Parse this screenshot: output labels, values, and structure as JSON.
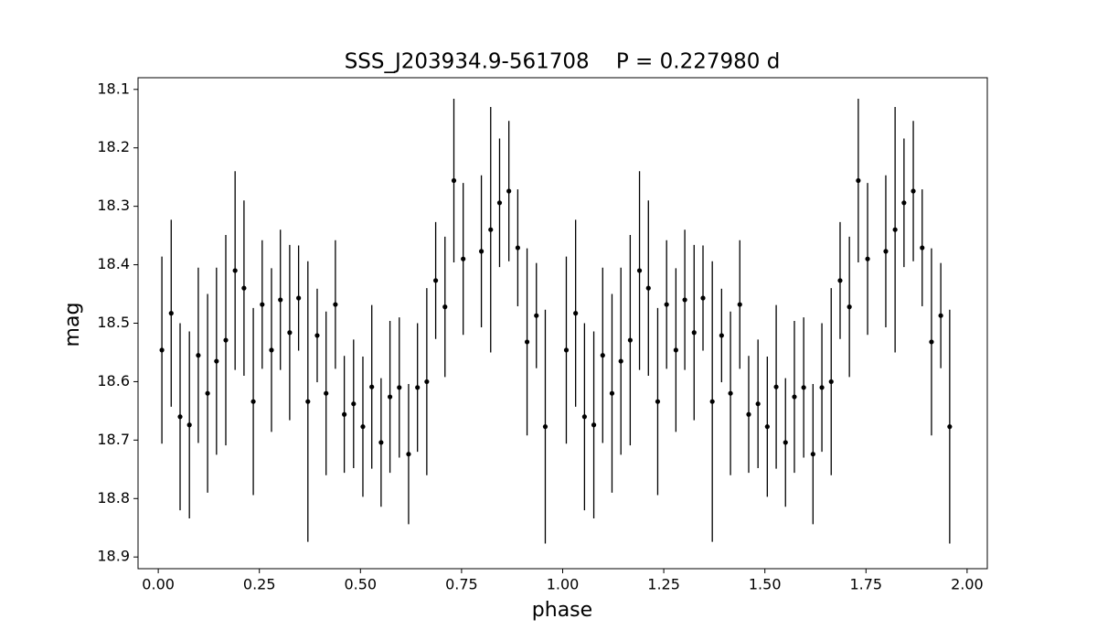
{
  "chart_data": {
    "type": "errorbar_scatter",
    "title": "SSS_J203934.9-561708    P = 0.227980 d",
    "x_label": "phase",
    "y_label": "mag",
    "xlim": [
      -0.05,
      2.05
    ],
    "ylim": [
      18.92,
      18.08
    ],
    "y_inverted": true,
    "xticks": [
      {
        "value": 0,
        "label": "0.00"
      },
      {
        "value": 0.25,
        "label": "0.25"
      },
      {
        "value": 0.5,
        "label": "0.50"
      },
      {
        "value": 0.75,
        "label": "0.75"
      },
      {
        "value": 1,
        "label": "1.00"
      },
      {
        "value": 1.25,
        "label": "1.25"
      },
      {
        "value": 1.5,
        "label": "1.50"
      },
      {
        "value": 1.75,
        "label": "1.75"
      },
      {
        "value": 2,
        "label": "2.00"
      }
    ],
    "yticks": [
      18.1,
      18.2,
      18.3,
      18.4,
      18.5,
      18.6,
      18.7,
      18.8,
      18.9
    ],
    "grid": false,
    "series": [
      {
        "color": "#000000",
        "x": [
          0.009,
          0.032,
          0.054,
          0.077,
          0.099,
          0.122,
          0.144,
          0.167,
          0.19,
          0.212,
          0.235,
          0.257,
          0.28,
          0.302,
          0.325,
          0.347,
          0.37,
          0.393,
          0.415,
          0.438,
          0.46,
          0.483,
          0.506,
          0.528,
          0.551,
          0.573,
          0.596,
          0.619,
          0.641,
          0.664,
          0.686,
          0.709,
          0.731,
          0.754,
          0.799,
          0.822,
          0.844,
          0.867,
          0.889,
          0.912,
          0.935,
          0.957,
          1.009,
          1.032,
          1.054,
          1.077,
          1.099,
          1.122,
          1.144,
          1.167,
          1.19,
          1.212,
          1.235,
          1.257,
          1.28,
          1.302,
          1.325,
          1.347,
          1.37,
          1.393,
          1.415,
          1.438,
          1.46,
          1.483,
          1.506,
          1.528,
          1.551,
          1.573,
          1.596,
          1.619,
          1.641,
          1.664,
          1.686,
          1.709,
          1.731,
          1.754,
          1.799,
          1.822,
          1.844,
          1.867,
          1.889,
          1.912,
          1.935,
          1.957
        ],
        "values": [
          18.546,
          18.483,
          18.66,
          18.674,
          18.555,
          18.62,
          18.565,
          18.529,
          18.41,
          18.44,
          18.634,
          18.468,
          18.546,
          18.46,
          18.516,
          18.457,
          18.634,
          18.521,
          18.62,
          18.468,
          18.656,
          18.638,
          18.677,
          18.609,
          18.704,
          18.626,
          18.61,
          18.724,
          18.61,
          18.6,
          18.427,
          18.472,
          18.256,
          18.39,
          18.377,
          18.34,
          18.294,
          18.274,
          18.371,
          18.532,
          18.487,
          18.677,
          18.546,
          18.483,
          18.66,
          18.674,
          18.555,
          18.62,
          18.565,
          18.529,
          18.41,
          18.44,
          18.634,
          18.468,
          18.546,
          18.46,
          18.516,
          18.457,
          18.634,
          18.521,
          18.62,
          18.468,
          18.656,
          18.638,
          18.677,
          18.609,
          18.704,
          18.626,
          18.61,
          18.724,
          18.61,
          18.6,
          18.427,
          18.472,
          18.256,
          18.39,
          18.377,
          18.34,
          18.294,
          18.274,
          18.371,
          18.532,
          18.487,
          18.677
        ],
        "errors": [
          0.16,
          0.16,
          0.16,
          0.16,
          0.15,
          0.17,
          0.16,
          0.18,
          0.17,
          0.15,
          0.16,
          0.11,
          0.14,
          0.12,
          0.15,
          0.09,
          0.24,
          0.08,
          0.14,
          0.11,
          0.1,
          0.11,
          0.12,
          0.14,
          0.11,
          0.13,
          0.12,
          0.12,
          0.11,
          0.16,
          0.1,
          0.12,
          0.14,
          0.13,
          0.13,
          0.21,
          0.11,
          0.12,
          0.1,
          0.16,
          0.09,
          0.2,
          0.16,
          0.16,
          0.16,
          0.16,
          0.15,
          0.17,
          0.16,
          0.18,
          0.17,
          0.15,
          0.16,
          0.11,
          0.14,
          0.12,
          0.15,
          0.09,
          0.24,
          0.08,
          0.14,
          0.11,
          0.1,
          0.11,
          0.12,
          0.14,
          0.11,
          0.13,
          0.12,
          0.12,
          0.11,
          0.16,
          0.1,
          0.12,
          0.14,
          0.13,
          0.13,
          0.21,
          0.11,
          0.12,
          0.1,
          0.16,
          0.09,
          0.2
        ]
      }
    ]
  }
}
